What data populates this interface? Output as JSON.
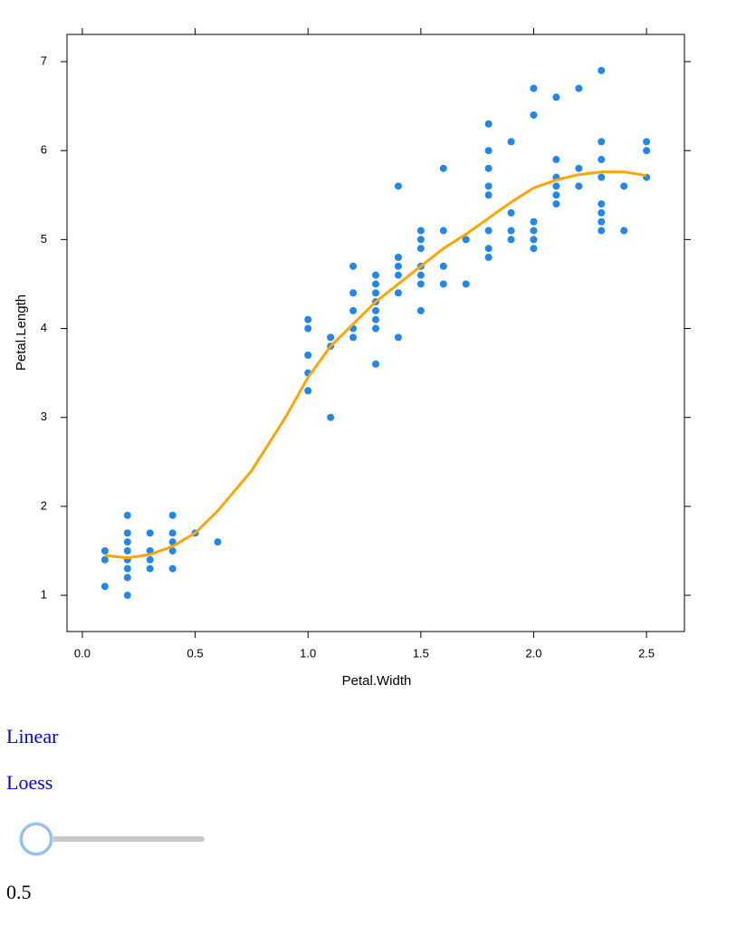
{
  "chart_data": {
    "type": "scatter",
    "xlabel": "Petal.Width",
    "ylabel": "Petal.Length",
    "color": "#1e88f0",
    "x": [
      0.1,
      0.1,
      0.1,
      0.2,
      0.2,
      0.2,
      0.2,
      0.2,
      0.2,
      0.2,
      0.2,
      0.3,
      0.3,
      0.3,
      0.3,
      0.4,
      0.4,
      0.4,
      0.4,
      0.4,
      0.5,
      0.6,
      1.0,
      1.0,
      1.0,
      1.0,
      1.0,
      1.1,
      1.1,
      1.1,
      1.2,
      1.2,
      1.2,
      1.2,
      1.2,
      1.3,
      1.3,
      1.3,
      1.3,
      1.3,
      1.3,
      1.3,
      1.3,
      1.4,
      1.4,
      1.4,
      1.4,
      1.4,
      1.4,
      1.5,
      1.5,
      1.5,
      1.5,
      1.5,
      1.5,
      1.5,
      1.6,
      1.6,
      1.6,
      1.6,
      1.7,
      1.7,
      1.8,
      1.8,
      1.8,
      1.8,
      1.8,
      1.8,
      1.8,
      1.8,
      1.9,
      1.9,
      1.9,
      1.9,
      2.0,
      2.0,
      2.0,
      2.0,
      2.0,
      2.0,
      2.1,
      2.1,
      2.1,
      2.1,
      2.1,
      2.1,
      2.2,
      2.2,
      2.2,
      2.3,
      2.3,
      2.3,
      2.3,
      2.3,
      2.3,
      2.3,
      2.3,
      2.4,
      2.4,
      2.5,
      2.5,
      2.5
    ],
    "values": [
      1.1,
      1.4,
      1.5,
      1.0,
      1.2,
      1.3,
      1.4,
      1.5,
      1.6,
      1.7,
      1.9,
      1.3,
      1.4,
      1.5,
      1.7,
      1.3,
      1.5,
      1.6,
      1.7,
      1.9,
      1.7,
      1.6,
      3.3,
      3.5,
      3.7,
      4.0,
      4.1,
      3.0,
      3.8,
      3.9,
      3.9,
      4.0,
      4.2,
      4.4,
      4.7,
      3.6,
      4.0,
      4.1,
      4.2,
      4.3,
      4.4,
      4.5,
      4.6,
      3.9,
      4.4,
      4.6,
      4.7,
      4.8,
      5.6,
      4.2,
      4.5,
      4.6,
      4.7,
      4.9,
      5.0,
      5.1,
      4.5,
      4.7,
      5.1,
      5.8,
      4.5,
      5.0,
      4.8,
      4.9,
      5.1,
      5.5,
      5.6,
      5.8,
      6.0,
      6.3,
      5.0,
      5.1,
      5.3,
      6.1,
      4.9,
      5.0,
      5.1,
      5.2,
      6.4,
      6.7,
      5.4,
      5.5,
      5.6,
      5.7,
      5.9,
      6.6,
      5.6,
      5.8,
      6.7,
      5.1,
      5.2,
      5.3,
      5.4,
      5.7,
      5.9,
      6.1,
      6.9,
      5.1,
      5.6,
      5.7,
      6.0,
      6.1
    ],
    "fit_line": {
      "color": "#ffa500",
      "x": [
        0.1,
        0.2,
        0.3,
        0.4,
        0.5,
        0.6,
        0.75,
        0.9,
        1.0,
        1.1,
        1.2,
        1.3,
        1.4,
        1.5,
        1.6,
        1.7,
        1.8,
        1.9,
        2.0,
        2.1,
        2.2,
        2.3,
        2.4,
        2.5
      ],
      "values": [
        1.45,
        1.42,
        1.46,
        1.55,
        1.7,
        1.95,
        2.4,
        3.0,
        3.45,
        3.8,
        4.05,
        4.3,
        4.5,
        4.7,
        4.9,
        5.06,
        5.24,
        5.42,
        5.58,
        5.67,
        5.73,
        5.76,
        5.76,
        5.72
      ]
    },
    "xlim": [
      -0.068,
      2.668
    ],
    "ylim": [
      0.593,
      7.306
    ],
    "xticks": [
      {
        "value": 0,
        "label": "0.0"
      },
      0.5,
      {
        "value": 1,
        "label": "1.0"
      },
      1.5,
      {
        "value": 2,
        "label": "2.0"
      },
      2.5
    ],
    "yticks": [
      1,
      2,
      3,
      4,
      5,
      6,
      7
    ]
  },
  "controls": {
    "links": [
      "Linear",
      "Loess"
    ],
    "span": 0.5
  }
}
